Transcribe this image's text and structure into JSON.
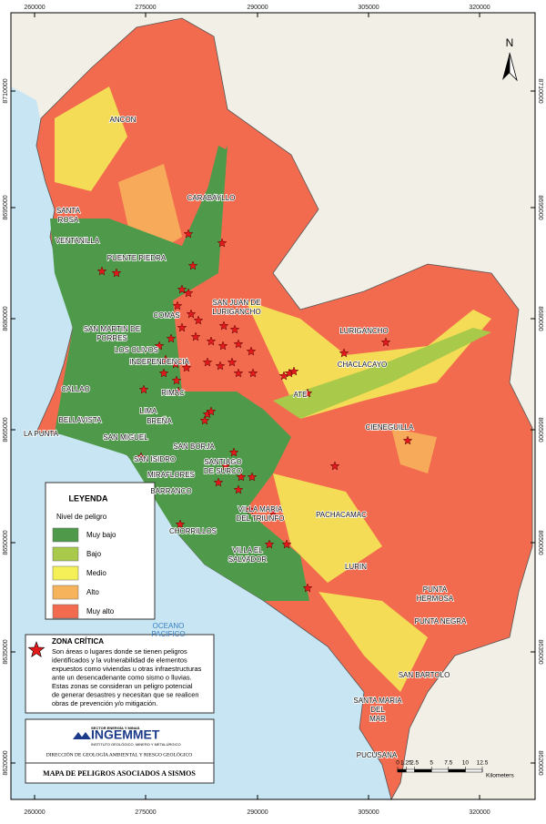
{
  "map": {
    "x_ticks": [
      260000,
      275000,
      290000,
      305000,
      320000
    ],
    "y_ticks": [
      8710000,
      8695000,
      8680000,
      8665000,
      8650000,
      8635000,
      8620000
    ],
    "north": "N",
    "ocean": [
      "OCEANO",
      "PACIFICO"
    ],
    "places": [
      {
        "lines": [
          "ANCON"
        ]
      },
      {
        "lines": [
          "SANTA",
          "ROSA"
        ]
      },
      {
        "lines": [
          "CARABAYLLO"
        ]
      },
      {
        "lines": [
          "VENTANILLA"
        ]
      },
      {
        "lines": [
          "PUENTE PIEDRA"
        ]
      },
      {
        "lines": [
          "SAN JUAN DE",
          "LURIGANCHO"
        ]
      },
      {
        "lines": [
          "COMAS"
        ]
      },
      {
        "lines": [
          "SAN MARTIN DE",
          "PORRES"
        ]
      },
      {
        "lines": [
          "LOS OLIVOS"
        ]
      },
      {
        "lines": [
          "INDEPENDENCIA"
        ]
      },
      {
        "lines": [
          "LURIGANCHO"
        ]
      },
      {
        "lines": [
          "CHACLACAYO"
        ]
      },
      {
        "lines": [
          "CALLAO"
        ]
      },
      {
        "lines": [
          "RIMAC"
        ]
      },
      {
        "lines": [
          "ATE"
        ]
      },
      {
        "lines": [
          "LIMA"
        ]
      },
      {
        "lines": [
          "BELLAVISTA"
        ]
      },
      {
        "lines": [
          "BREÑA"
        ]
      },
      {
        "lines": [
          "CIENEGUILLA"
        ]
      },
      {
        "lines": [
          "LA PUNTA"
        ]
      },
      {
        "lines": [
          "SAN MIGUEL"
        ]
      },
      {
        "lines": [
          "SAN BORJA"
        ]
      },
      {
        "lines": [
          "SAN ISIDRO"
        ]
      },
      {
        "lines": [
          "SANTIAGO",
          "DE SURCO"
        ]
      },
      {
        "lines": [
          "MIRAFLORES"
        ]
      },
      {
        "lines": [
          "BARRANCO"
        ]
      },
      {
        "lines": [
          "VILLA MARIA",
          "DEL TRIUNFO"
        ]
      },
      {
        "lines": [
          "PACHACAMAC"
        ]
      },
      {
        "lines": [
          "CHORRILLOS"
        ]
      },
      {
        "lines": [
          "VILLA EL",
          "SALVADOR"
        ]
      },
      {
        "lines": [
          "LURIN"
        ]
      },
      {
        "lines": [
          "PUNTA",
          "HERMOSA"
        ]
      },
      {
        "lines": [
          "PUNTA NEGRA"
        ]
      },
      {
        "lines": [
          "SAN BARTOLO"
        ]
      },
      {
        "lines": [
          "SANTA MARIA",
          "DEL",
          "MAR"
        ]
      },
      {
        "lines": [
          "PUCUSANA"
        ]
      }
    ],
    "legend": {
      "title": "LEYENDA",
      "subtitle": "Nivel de peligro",
      "items": [
        {
          "label": "Muy bajo",
          "color": "#4f9a4a"
        },
        {
          "label": "Bajo",
          "color": "#a8c94a"
        },
        {
          "label": "Medio",
          "color": "#f5f057"
        },
        {
          "label": "Alto",
          "color": "#f7b35b"
        },
        {
          "label": "Muy alto",
          "color": "#f26b4f"
        }
      ]
    },
    "critical_zone": {
      "title": "ZONA CRÍTICA",
      "lines": [
        "Son áreas o lugares donde se tienen peligros",
        "identificados y la vulnerabilidad de elementos",
        "expuestos como viviendas u otras infraestructuras",
        "ante un desencadenante como sismo o lluvias.",
        "Estas zonas se consideran un peligro potencial",
        "de generar desastres y necesitan que se realicen",
        "obras de prevención y/o mitigación."
      ]
    },
    "institution": {
      "sector": "SECTOR ENERGÍA Y MINAS",
      "name": "INGEMMET",
      "subtitle": "INSTITUTO GEOLÓGICO, MINERO Y METALÚRGICO",
      "office": "DIRECCIÓN DE GEOLOGÍA AMBIENTAL Y RIESGO GEOLÓGICO"
    },
    "map_title": "MAPA DE PELIGROS ASOCIADOS A SISMOS",
    "scale": {
      "ticks": [
        0,
        1.25,
        2.5,
        5,
        7.5,
        10,
        12.5
      ],
      "unit": "Kilometers"
    }
  }
}
